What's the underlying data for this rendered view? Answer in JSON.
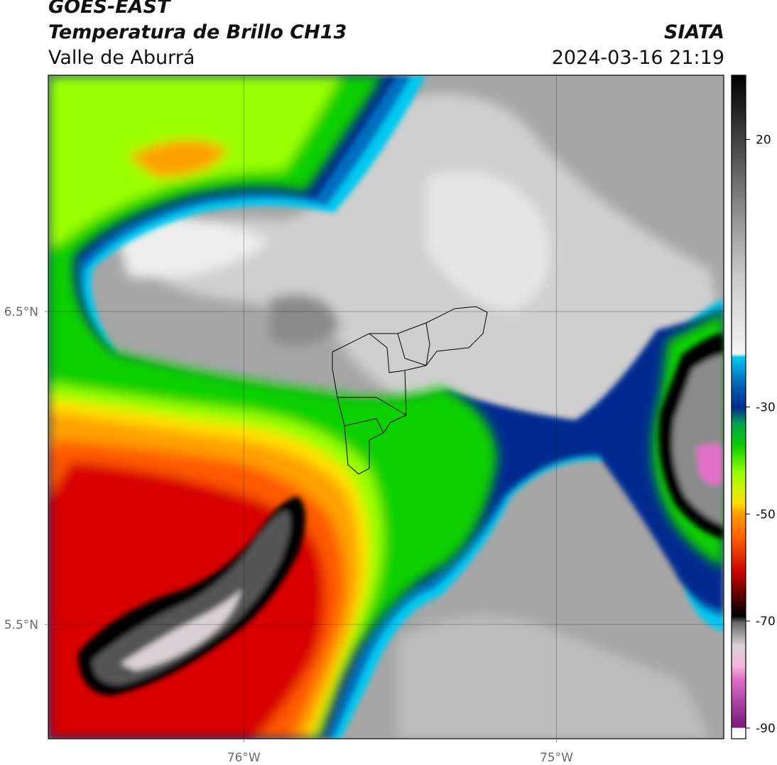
{
  "header": {
    "satellite": "GOES-EAST",
    "product": "Temperatura de Brillo CH13",
    "region": "Valle de Aburrá",
    "organization": "SIATA",
    "timestamp": "2024-03-16 21:19"
  },
  "map": {
    "lat_range": [
      5.135,
      7.255
    ],
    "lon_range": [
      -76.625,
      -74.465
    ],
    "lat_ticks": [
      {
        "value": 6.5,
        "label": "6.5°N"
      },
      {
        "value": 5.5,
        "label": "5.5°N"
      }
    ],
    "lon_ticks": [
      {
        "value": -76,
        "label": "76°W"
      },
      {
        "value": -75,
        "label": "75°W"
      }
    ],
    "grid": true
  },
  "colorbar": {
    "range": [
      -92,
      32
    ],
    "ticks": [
      {
        "value": 20,
        "label": "20"
      },
      {
        "value": -30,
        "label": "-30"
      },
      {
        "value": -50,
        "label": "-50"
      },
      {
        "value": -70,
        "label": "-70"
      },
      {
        "value": -90,
        "label": "-90"
      }
    ]
  }
}
